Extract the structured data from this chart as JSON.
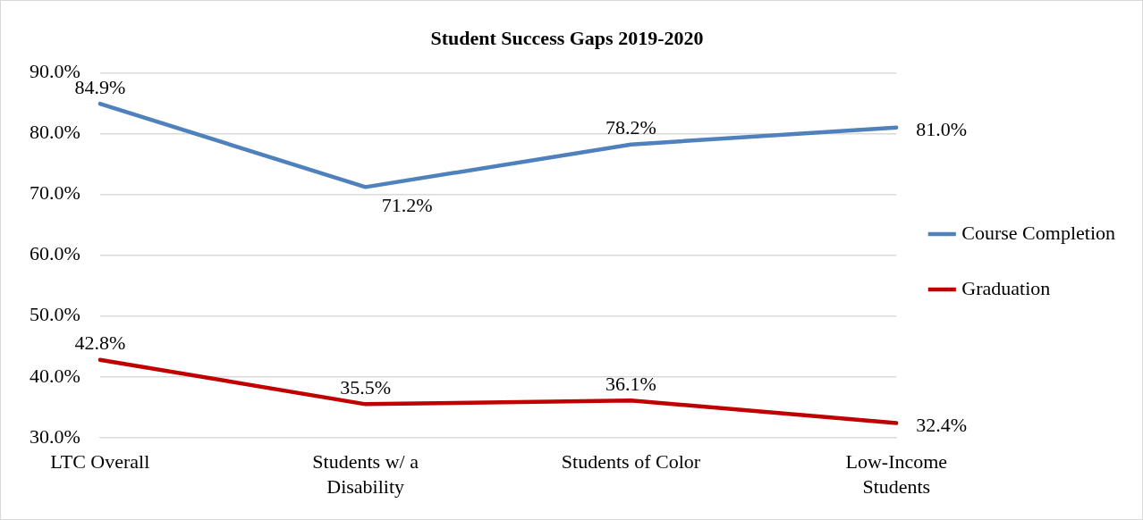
{
  "chart_data": {
    "type": "line",
    "title": "Student Success Gaps 2019-2020",
    "categories": [
      "LTC Overall",
      "Students w/ a Disability",
      "Students of Color",
      "Low-Income Students"
    ],
    "series": [
      {
        "name": "Course Completion",
        "color": "#4f81bd",
        "values": [
          84.9,
          71.2,
          78.2,
          81.0
        ],
        "value_labels": [
          "84.9%",
          "71.2%",
          "78.2%",
          "81.0%"
        ]
      },
      {
        "name": "Graduation",
        "color": "#c00000",
        "values": [
          42.8,
          35.5,
          36.1,
          32.4
        ],
        "value_labels": [
          "42.8%",
          "35.5%",
          "36.1%",
          "32.4%"
        ]
      }
    ],
    "ylim": [
      30,
      90
    ],
    "yticks": [
      {
        "value": 30,
        "label": "30.0%"
      },
      {
        "value": 40,
        "label": "40.0%"
      },
      {
        "value": 50,
        "label": "50.0%"
      },
      {
        "value": 60,
        "label": "60.0%"
      },
      {
        "value": 70,
        "label": "70.0%"
      },
      {
        "value": 80,
        "label": "80.0%"
      },
      {
        "value": 90,
        "label": "90.0%"
      }
    ],
    "grid": "y",
    "legend": "right",
    "marker": "none",
    "line_style": "solid"
  }
}
